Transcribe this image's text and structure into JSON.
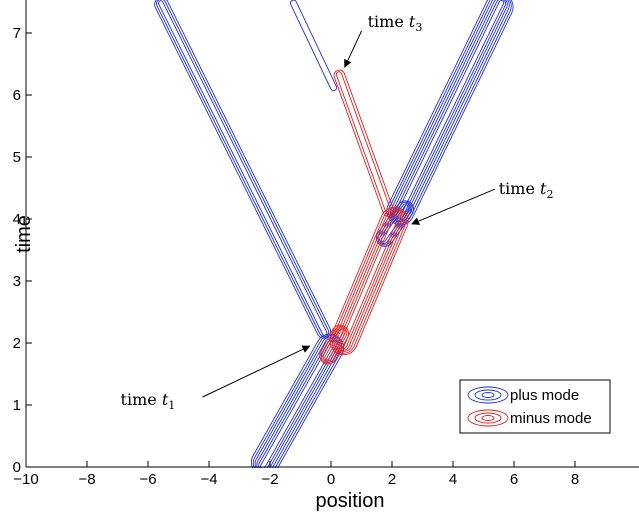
{
  "chart_data": {
    "type": "contour",
    "title": "",
    "xlabel": "position",
    "ylabel": "time",
    "xlim": [
      -10,
      10
    ],
    "ylim": [
      0,
      7.5
    ],
    "xticks": [
      -10,
      -8,
      -6,
      -4,
      -2,
      0,
      2,
      4,
      6,
      8
    ],
    "yticks": [
      0,
      1,
      2,
      3,
      4,
      5,
      6,
      7
    ],
    "grid": false,
    "legend_position": "bottom-right",
    "colors": {
      "plus": "#1f2fd6",
      "minus": "#e02020"
    },
    "series": [
      {
        "name": "plus mode",
        "color": "#1f2fd6",
        "segments": [
          {
            "x": [
              -2.25,
              0.05
            ],
            "y": [
              0,
              2.0
            ],
            "width": 0.9,
            "levels": 6
          },
          {
            "x": [
              1.7,
              2.5
            ],
            "y": [
              3.65,
              4.2
            ],
            "width": 0.55,
            "levels": 4
          },
          {
            "x": [
              2.2,
              5.6
            ],
            "y": [
              4.05,
              7.5
            ],
            "width": 0.9,
            "levels": 6
          }
        ],
        "thin_branches": [
          {
            "x": [
              -5.6,
              -0.2
            ],
            "y": [
              7.5,
              2.15
            ],
            "width": 0.45,
            "levels": 3
          },
          {
            "x": [
              -1.25,
              0.1
            ],
            "y": [
              7.5,
              6.1
            ],
            "width": 0.2,
            "levels": 1
          }
        ]
      },
      {
        "name": "minus mode",
        "color": "#e02020",
        "segments": [
          {
            "x": [
              -0.15,
              0.35
            ],
            "y": [
              1.75,
              2.2
            ],
            "width": 0.55,
            "levels": 4
          },
          {
            "x": [
              0.35,
              2.15
            ],
            "y": [
              1.95,
              4.05
            ],
            "width": 0.9,
            "levels": 6
          }
        ],
        "thin_branches": [
          {
            "x": [
              1.9,
              0.25
            ],
            "y": [
              4.1,
              6.35
            ],
            "width": 0.35,
            "levels": 2
          }
        ]
      }
    ],
    "annotations": [
      {
        "label": "time",
        "subscript": "1",
        "x": -6.9,
        "y": 1.0,
        "arrow_to": [
          -0.7,
          1.95
        ]
      },
      {
        "label": "time",
        "subscript": "2",
        "x": 5.5,
        "y": 4.4,
        "arrow_to": [
          2.65,
          3.92
        ]
      },
      {
        "label": "time",
        "subscript": "3",
        "x": 1.2,
        "y": 7.1,
        "arrow_to": [
          0.45,
          6.45
        ]
      }
    ]
  }
}
